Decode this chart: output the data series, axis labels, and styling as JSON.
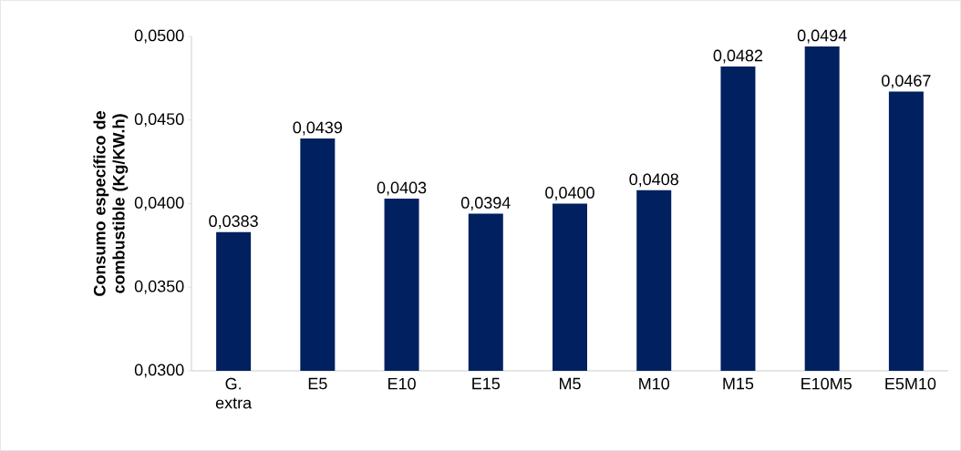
{
  "chart_data": {
    "type": "bar",
    "ylabel": "Consumo específico de combustible (Kg/KW.h)",
    "categories": [
      "G. extra",
      "E5",
      "E10",
      "E15",
      "M5",
      "M10",
      "M15",
      "E10M5",
      "E5M10"
    ],
    "values": [
      0.0383,
      0.0439,
      0.0403,
      0.0394,
      0.04,
      0.0408,
      0.0482,
      0.0494,
      0.0467
    ],
    "value_labels": [
      "0,0383",
      "0,0439",
      "0,0403",
      "0,0394",
      "0,0400",
      "0,0408",
      "0,0482",
      "0,0494",
      "0,0467"
    ],
    "color": "#002060",
    "ylim": [
      0.03,
      0.05
    ],
    "yticks": [
      {
        "value": 0.03,
        "label": "0,0300"
      },
      {
        "value": 0.035,
        "label": "0,0350"
      },
      {
        "value": 0.04,
        "label": "0,0400"
      },
      {
        "value": 0.045,
        "label": "0,0450"
      },
      {
        "value": 0.05,
        "label": "0,0500"
      }
    ],
    "data_labels": false
  }
}
